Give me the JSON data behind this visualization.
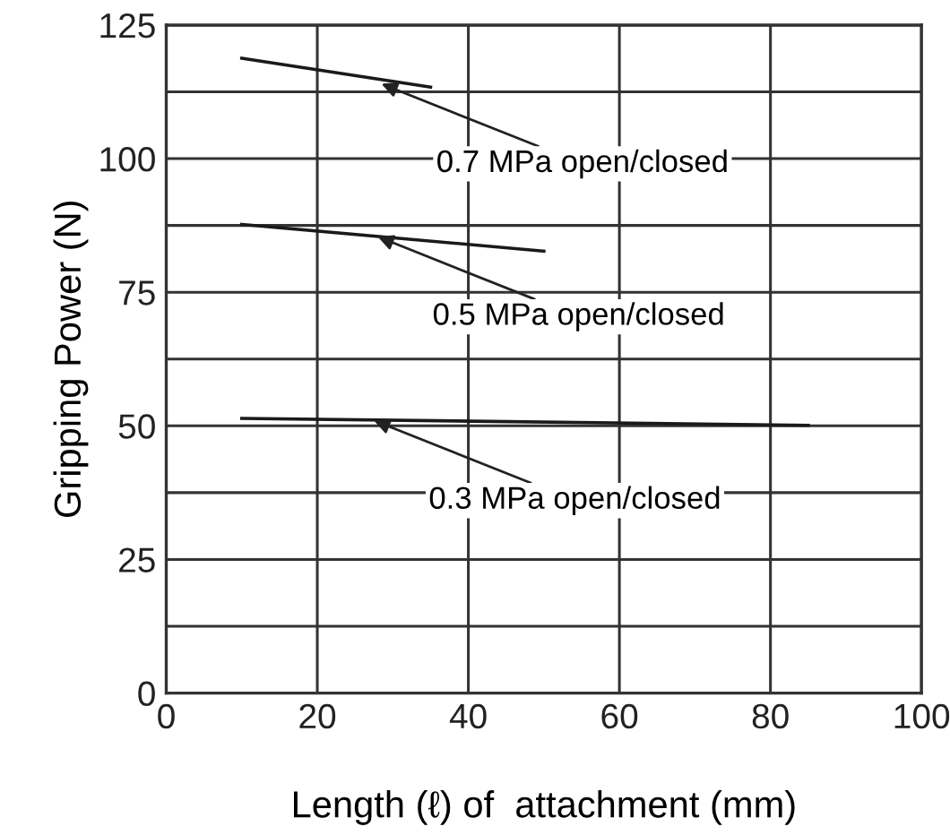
{
  "chart_data": {
    "type": "line",
    "xlabel": "Length (ℓ) of  attachment (mm)",
    "ylabel": "Gripping Power (N)",
    "xlim": [
      0,
      100
    ],
    "xticks": [
      0,
      20,
      40,
      60,
      80,
      100
    ],
    "ylim": [
      0,
      125
    ],
    "yticks": [
      0,
      {
        "value": 12.5,
        "label": null
      },
      25,
      {
        "value": 37.5,
        "label": null
      },
      50,
      {
        "value": 62.5,
        "label": null
      },
      75,
      {
        "value": 87.5,
        "label": null
      },
      100,
      {
        "value": 112.5,
        "label": null
      },
      125
    ],
    "grid": true,
    "marker": "none",
    "line_style": "solid",
    "series": [
      {
        "color": "#1a1a1a",
        "x": [
          10,
          35
        ],
        "values": [
          118.8,
          113.4
        ]
      },
      {
        "color": "#1a1a1a",
        "x": [
          10,
          50
        ],
        "values": [
          87.7,
          82.7
        ]
      },
      {
        "color": "#1a1a1a",
        "x": [
          10,
          85
        ],
        "values": [
          51.4,
          50.1
        ]
      }
    ],
    "annotations": [
      {
        "text": "0.7 MPa open/closed",
        "x": 28.5,
        "y": 114
      },
      {
        "text": "0.5 MPa open/closed",
        "x": 28,
        "y": 85.4
      },
      {
        "text": "0.3 MPa open/closed",
        "x": 27.5,
        "y": 51
      }
    ]
  }
}
